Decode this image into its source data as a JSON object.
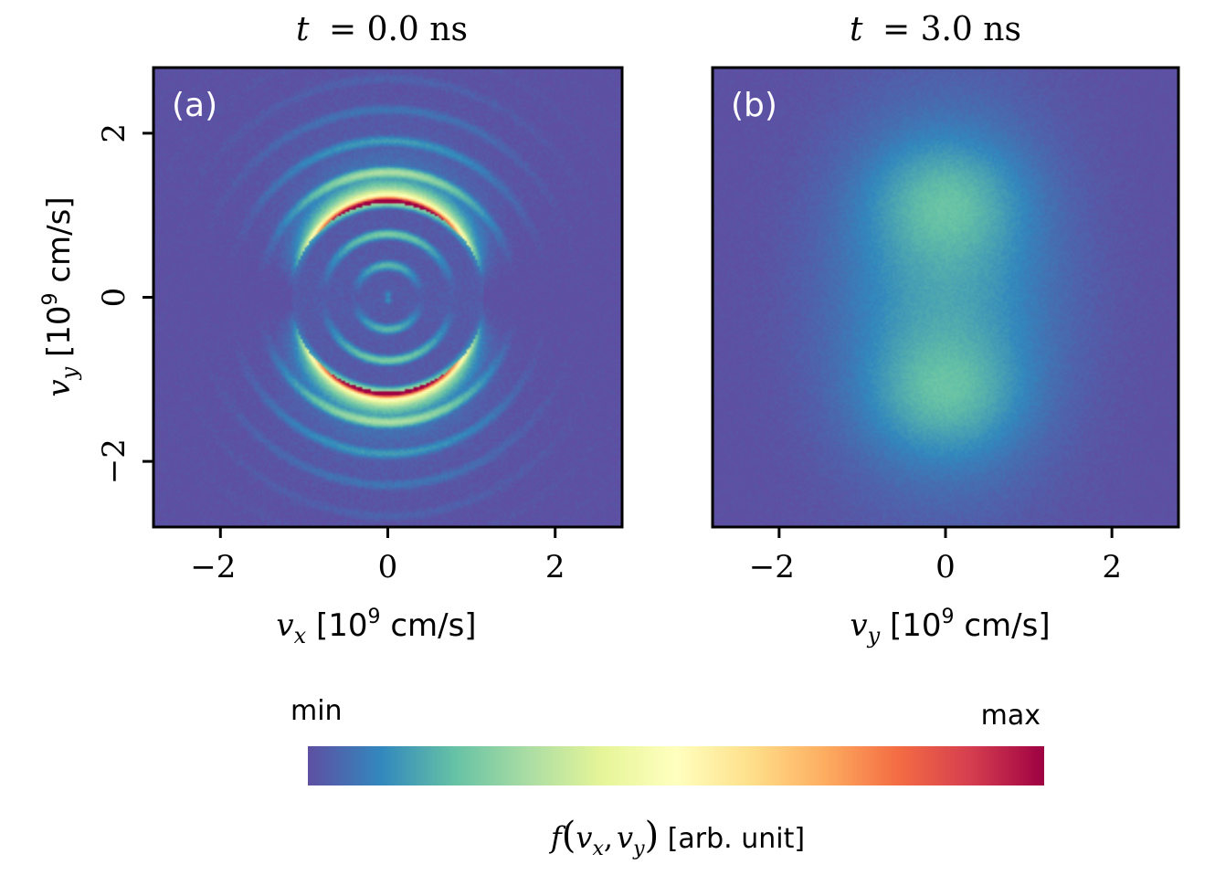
{
  "colors": {
    "colormap": [
      "#5e4fa2",
      "#3288bd",
      "#66c2a5",
      "#abdda4",
      "#e6f598",
      "#ffffbf",
      "#fee08b",
      "#fdae61",
      "#f46d43",
      "#d53e4f",
      "#9e0142"
    ]
  },
  "chart_data": [
    {
      "type": "heatmap",
      "panel_label": "(a)",
      "title_var": "t",
      "title_value": "= 0.0 ns",
      "xlabel": {
        "var": "v",
        "sub": "x",
        "text": " [10",
        "sup": "9",
        "unit": " cm/s]"
      },
      "ylabel": {
        "var": "v",
        "sub": "y",
        "text": " [10",
        "sup": "9",
        "unit": " cm/s]"
      },
      "xlim": [
        -2.8,
        2.8
      ],
      "ylim": [
        -2.8,
        2.8
      ],
      "xticks": [
        -2,
        0,
        2
      ],
      "xtick_labels": [
        "−2",
        "0",
        "2"
      ],
      "yticks": [
        -2,
        0,
        2
      ],
      "ytick_labels": [
        "−2",
        "0",
        "2"
      ],
      "grid": false,
      "description_of_field": "ring distribution: inner disk radius 1.15 with rings; bright red caps near vy=+/-1.15"
    },
    {
      "type": "heatmap",
      "panel_label": "(b)",
      "title_var": "t",
      "title_value": "= 3.0 ns",
      "xlabel": {
        "var": "v",
        "sub": "y",
        "text": " [10",
        "sup": "9",
        "unit": " cm/s]"
      },
      "xlim": [
        -2.8,
        2.8
      ],
      "ylim": [
        -2.8,
        2.8
      ],
      "xticks": [
        -2,
        0,
        2
      ],
      "xtick_labels": [
        "−2",
        "0",
        "2"
      ],
      "grid": false
    }
  ],
  "colorbar": {
    "min_label": "min",
    "max_label": "max",
    "label_f": "f",
    "label_v1": "v",
    "label_s1": "x",
    "label_comma": ",",
    "label_v2": "v",
    "label_s2": "y",
    "label_unit": " [arb. unit]"
  }
}
